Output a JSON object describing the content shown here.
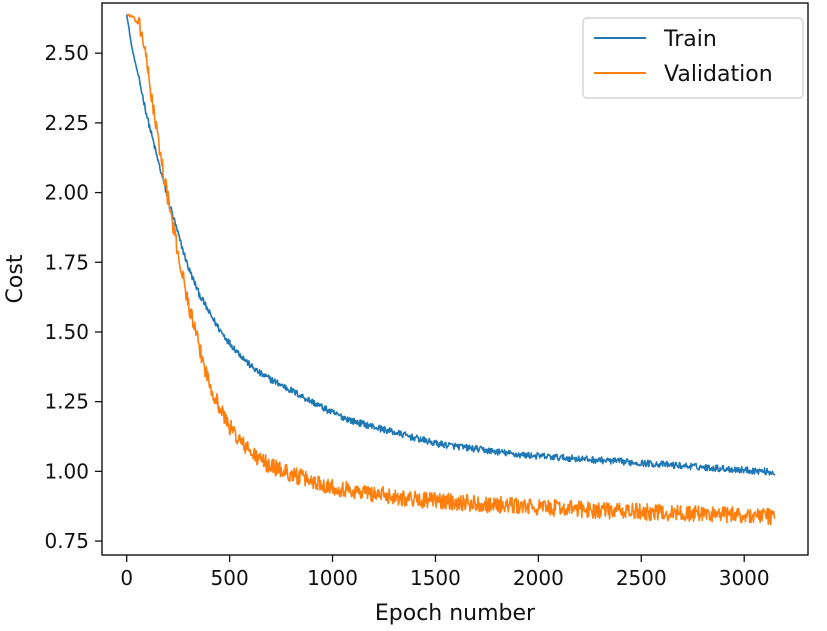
{
  "chart_data": {
    "type": "line",
    "title": "",
    "xlabel": "Epoch number",
    "ylabel": "Cost",
    "xlim": [
      -120,
      3310
    ],
    "ylim": [
      0.7,
      2.68
    ],
    "xticks": [
      0,
      500,
      1000,
      1500,
      2000,
      2500,
      3000
    ],
    "xtick_labels": [
      "0",
      "500",
      "1000",
      "1500",
      "2000",
      "2500",
      "3000"
    ],
    "yticks": [
      0.75,
      1.0,
      1.25,
      1.5,
      1.75,
      2.0,
      2.25,
      2.5
    ],
    "ytick_labels": [
      "0.75",
      "1.00",
      "1.25",
      "1.50",
      "1.75",
      "2.00",
      "2.25",
      "2.50"
    ],
    "grid": false,
    "legend_position": "top-right",
    "series": [
      {
        "name": "Train",
        "color": "#1f77b4",
        "noise": 0.012,
        "x": [
          0,
          25,
          50,
          100,
          150,
          200,
          250,
          300,
          350,
          400,
          450,
          500,
          550,
          600,
          650,
          700,
          800,
          900,
          1000,
          1100,
          1200,
          1300,
          1400,
          1500,
          1600,
          1700,
          1800,
          1900,
          2000,
          2100,
          2200,
          2300,
          2400,
          2500,
          2600,
          2700,
          2800,
          2900,
          3000,
          3100,
          3150
        ],
        "y": [
          2.64,
          2.52,
          2.44,
          2.27,
          2.12,
          1.98,
          1.85,
          1.73,
          1.64,
          1.57,
          1.51,
          1.46,
          1.42,
          1.38,
          1.35,
          1.33,
          1.29,
          1.25,
          1.21,
          1.18,
          1.16,
          1.14,
          1.12,
          1.1,
          1.09,
          1.08,
          1.07,
          1.06,
          1.055,
          1.05,
          1.045,
          1.04,
          1.035,
          1.03,
          1.025,
          1.02,
          1.015,
          1.01,
          1.005,
          1.0,
          0.995
        ]
      },
      {
        "name": "Validation",
        "color": "#ff7f0e",
        "noise": 0.03,
        "x": [
          0,
          30,
          60,
          80,
          100,
          150,
          200,
          250,
          300,
          350,
          400,
          450,
          500,
          550,
          600,
          650,
          700,
          800,
          900,
          1000,
          1100,
          1200,
          1300,
          1400,
          1500,
          1600,
          1700,
          1800,
          1900,
          2000,
          2100,
          2200,
          2300,
          2400,
          2500,
          2600,
          2700,
          2800,
          2900,
          3000,
          3100,
          3150
        ],
        "y": [
          2.64,
          2.63,
          2.6,
          2.55,
          2.45,
          2.2,
          1.98,
          1.78,
          1.6,
          1.45,
          1.32,
          1.23,
          1.16,
          1.11,
          1.07,
          1.04,
          1.02,
          0.99,
          0.965,
          0.945,
          0.93,
          0.92,
          0.91,
          0.9,
          0.895,
          0.89,
          0.885,
          0.88,
          0.875,
          0.87,
          0.868,
          0.865,
          0.86,
          0.857,
          0.855,
          0.852,
          0.85,
          0.848,
          0.845,
          0.842,
          0.84,
          0.838
        ]
      }
    ]
  }
}
